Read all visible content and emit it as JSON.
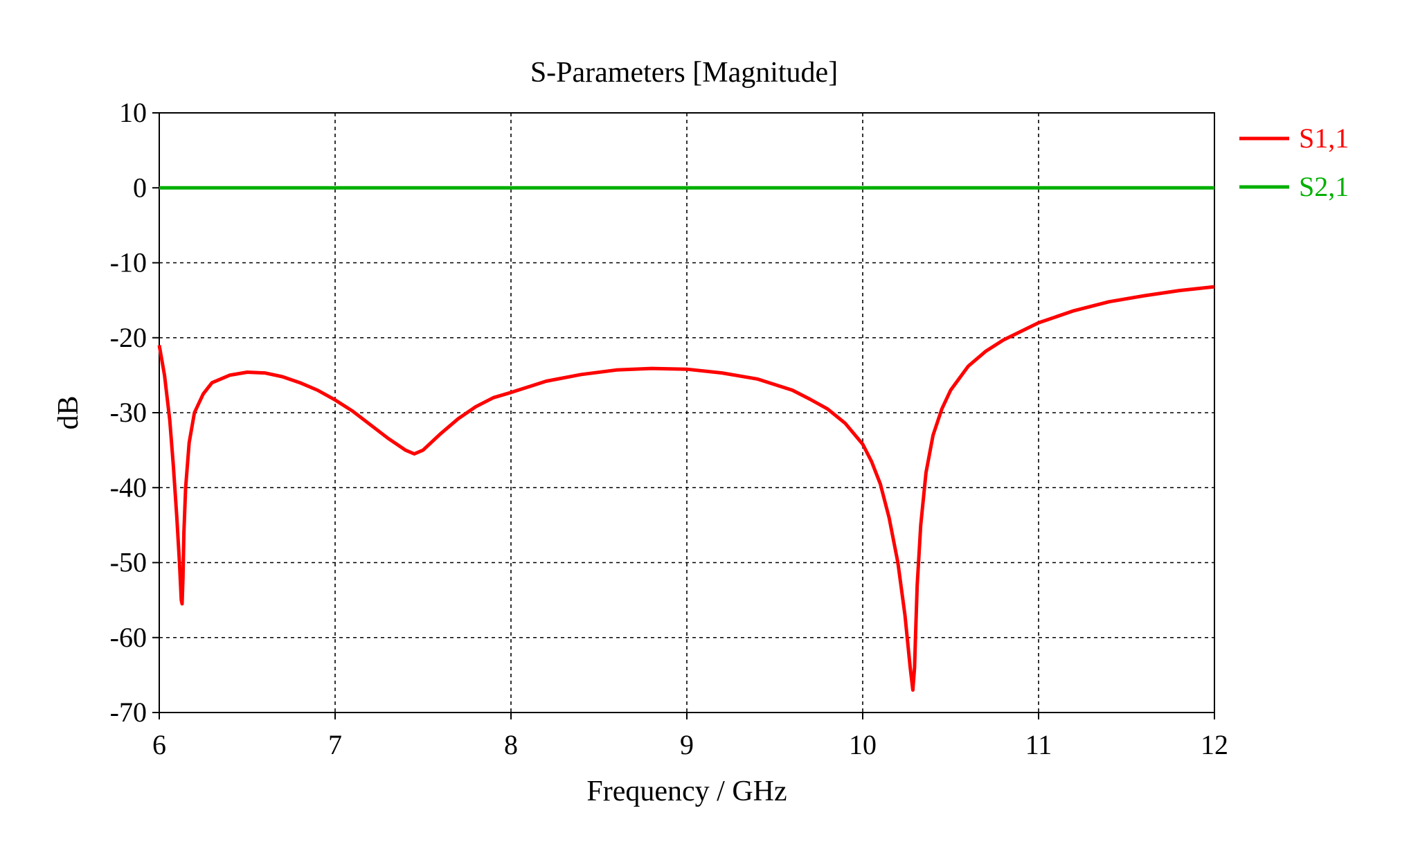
{
  "chart_data": {
    "type": "line",
    "title": "S-Parameters [Magnitude]",
    "xlabel": "Frequency / GHz",
    "ylabel": "dB",
    "xlim": [
      6,
      12
    ],
    "ylim": [
      -70,
      10
    ],
    "xticks": [
      "6",
      "7",
      "8",
      "9",
      "10",
      "11",
      "12"
    ],
    "yticks": [
      "10",
      "0",
      "-10",
      "-20",
      "-30",
      "-40",
      "-50",
      "-60",
      "-70"
    ],
    "grid": true,
    "legend_position": "right",
    "series": [
      {
        "name": "S1,1",
        "color": "#ff0000",
        "x": [
          6.0,
          6.03,
          6.06,
          6.08,
          6.1,
          6.115,
          6.125,
          6.13,
          6.135,
          6.14,
          6.15,
          6.17,
          6.2,
          6.25,
          6.3,
          6.4,
          6.5,
          6.6,
          6.7,
          6.8,
          6.9,
          7.0,
          7.1,
          7.2,
          7.3,
          7.4,
          7.45,
          7.5,
          7.6,
          7.7,
          7.8,
          7.9,
          8.0,
          8.2,
          8.4,
          8.6,
          8.8,
          9.0,
          9.2,
          9.4,
          9.6,
          9.7,
          9.8,
          9.9,
          10.0,
          10.05,
          10.1,
          10.15,
          10.2,
          10.24,
          10.27,
          10.285,
          10.295,
          10.3,
          10.31,
          10.33,
          10.36,
          10.4,
          10.45,
          10.5,
          10.6,
          10.7,
          10.8,
          11.0,
          11.2,
          11.4,
          11.6,
          11.8,
          12.0
        ],
        "y": [
          -21,
          -25,
          -31,
          -37,
          -44,
          -50,
          -55,
          -55.5,
          -52,
          -46,
          -40,
          -34,
          -30,
          -27.5,
          -26,
          -25,
          -24.6,
          -24.7,
          -25.2,
          -26,
          -27,
          -28.3,
          -29.8,
          -31.6,
          -33.4,
          -35,
          -35.5,
          -35,
          -32.8,
          -30.8,
          -29.2,
          -28,
          -27.3,
          -25.8,
          -24.9,
          -24.3,
          -24.1,
          -24.2,
          -24.7,
          -25.5,
          -27,
          -28.2,
          -29.5,
          -31.4,
          -34.2,
          -36.5,
          -39.5,
          -44,
          -50,
          -57,
          -64,
          -67,
          -64,
          -60,
          -53,
          -45,
          -38,
          -33,
          -29.5,
          -27,
          -23.8,
          -21.8,
          -20.3,
          -18,
          -16.4,
          -15.2,
          -14.4,
          -13.7,
          -13.2
        ]
      },
      {
        "name": "S2,1",
        "color": "#00b000",
        "x": [
          6,
          12
        ],
        "y": [
          0,
          0
        ]
      }
    ]
  }
}
